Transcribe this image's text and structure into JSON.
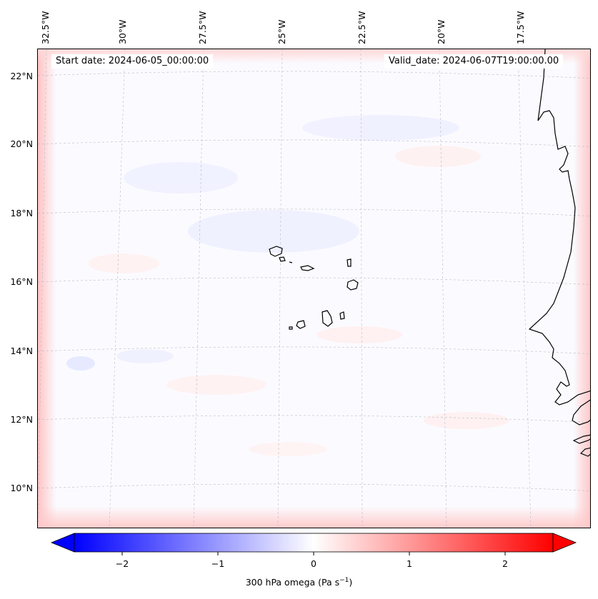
{
  "header": {
    "start_date": "Start date: 2024-06-05_00:00:00",
    "valid_date": "Valid_date: 2024-06-07T19:00:00.00"
  },
  "axes": {
    "lon_labels": [
      "32.5°W",
      "30°W",
      "27.5°W",
      "25°W",
      "22.5°W",
      "20°W",
      "17.5°W"
    ],
    "lat_labels": [
      "22°N",
      "20°N",
      "18°N",
      "16°N",
      "14°N",
      "12°N",
      "10°N"
    ]
  },
  "colorbar": {
    "ticks": [
      "−2",
      "−1",
      "0",
      "1",
      "2"
    ],
    "label_main": "300 hPa omega (Pa s",
    "label_sup": "−1",
    "label_end": ")",
    "range": [
      -2.5,
      2.5
    ],
    "cmap": [
      "#0000ff",
      "#ffffff",
      "#ff0000"
    ]
  },
  "colors": {
    "land_outline": "#000000",
    "grid": "#b0b0b0"
  }
}
